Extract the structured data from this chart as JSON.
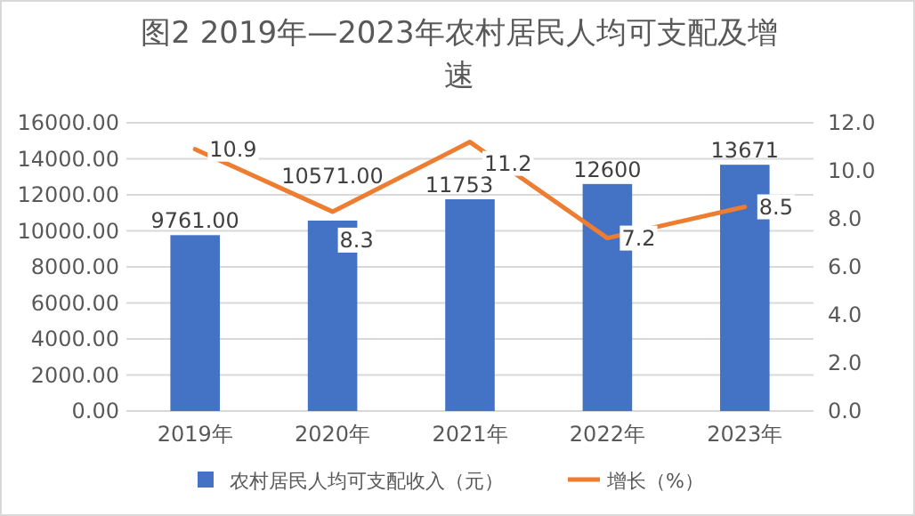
{
  "chart_data": {
    "type": "bar",
    "title": "图2 2019年—2023年农村居民人均可支配及增速",
    "categories": [
      "2019年",
      "2020年",
      "2021年",
      "2022年",
      "2023年"
    ],
    "series": [
      {
        "name": "农村居民人均可支配收入（元）",
        "color": "#4472c4",
        "values": [
          9761,
          10571,
          11753,
          12600,
          13671
        ],
        "value_labels": [
          "9761.00",
          "10571.00",
          "11753",
          "12600",
          "13671"
        ]
      },
      {
        "name": "增长（%）",
        "type": "line",
        "axis": "y2",
        "color": "#ed7d31",
        "values": [
          10.9,
          8.3,
          11.2,
          7.2,
          8.5
        ],
        "data_labels": true
      }
    ],
    "ylim": [
      0,
      16000
    ],
    "yticks": [
      {
        "value": 0,
        "label": "0.00"
      },
      {
        "value": 2000,
        "label": "2000.00"
      },
      {
        "value": 4000,
        "label": "4000.00"
      },
      {
        "value": 6000,
        "label": "6000.00"
      },
      {
        "value": 8000,
        "label": "8000.00"
      },
      {
        "value": 10000,
        "label": "10000.00"
      },
      {
        "value": 12000,
        "label": "12000.00"
      },
      {
        "value": 14000,
        "label": "14000.00"
      },
      {
        "value": 16000,
        "label": "16000.00"
      }
    ],
    "y2lim": [
      0,
      12
    ],
    "y2ticks": [
      {
        "value": 0,
        "label": "0.0"
      },
      {
        "value": 2,
        "label": "2.0"
      },
      {
        "value": 4,
        "label": "4.0"
      },
      {
        "value": 6,
        "label": "6.0"
      },
      {
        "value": 8,
        "label": "8.0"
      },
      {
        "value": 10,
        "label": "10.0"
      },
      {
        "value": 12,
        "label": "12.0"
      }
    ],
    "grid": "y",
    "legend": "bottom",
    "marker": "none",
    "line_style": "solid"
  }
}
